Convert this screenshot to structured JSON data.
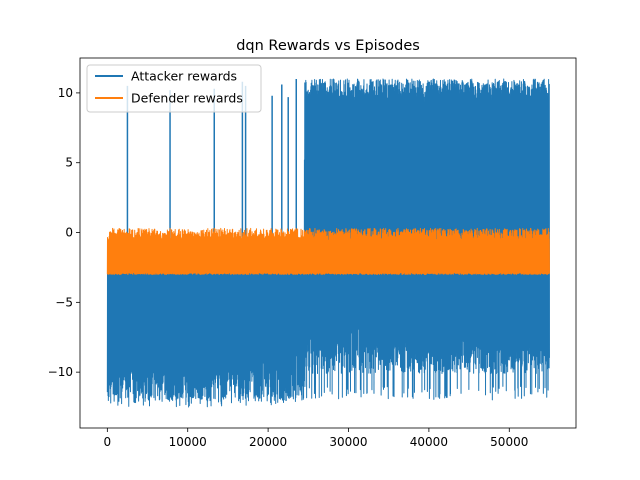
{
  "chart_data": {
    "type": "line",
    "title": "dqn Rewards vs Episodes",
    "xlabel": "",
    "ylabel": "",
    "xlim": [
      -3400,
      58300
    ],
    "ylim": [
      -14.0,
      12.5
    ],
    "xticks": [
      0,
      10000,
      20000,
      30000,
      40000,
      50000
    ],
    "xtick_labels": [
      "0",
      "10000",
      "20000",
      "30000",
      "40000",
      "50000"
    ],
    "yticks": [
      -10,
      -5,
      0,
      5,
      10
    ],
    "ytick_labels": [
      "−10",
      "−5",
      "0",
      "5",
      "10"
    ],
    "grid": false,
    "legend": {
      "position": "top-left"
    },
    "x_max": 55000,
    "series": [
      {
        "name": "Attacker rewards",
        "color": "#1f77b4",
        "phases": [
          {
            "x_start": 0,
            "x_end": 24500,
            "y_low": -12.5,
            "y_high": -2.0,
            "y_low_median": -11.0
          },
          {
            "x_start": 24500,
            "x_end": 55000,
            "y_low": -12.0,
            "y_high": 11.0,
            "y_low_median": -9.0
          }
        ],
        "spikes": [
          {
            "x": 2500,
            "y": 10.5
          },
          {
            "x": 7800,
            "y": 10.2
          },
          {
            "x": 13300,
            "y": 10.3
          },
          {
            "x": 16800,
            "y": 10.8
          },
          {
            "x": 17200,
            "y": 10.5
          },
          {
            "x": 20500,
            "y": 9.8
          },
          {
            "x": 21700,
            "y": 10.6
          },
          {
            "x": 22500,
            "y": 9.7
          },
          {
            "x": 23500,
            "y": 11.0
          }
        ]
      },
      {
        "name": "Defender rewards",
        "color": "#ff7f0e",
        "phases": [
          {
            "x_start": 0,
            "x_end": 55000,
            "y_low": -3.0,
            "y_high": 0.3
          }
        ]
      }
    ]
  }
}
